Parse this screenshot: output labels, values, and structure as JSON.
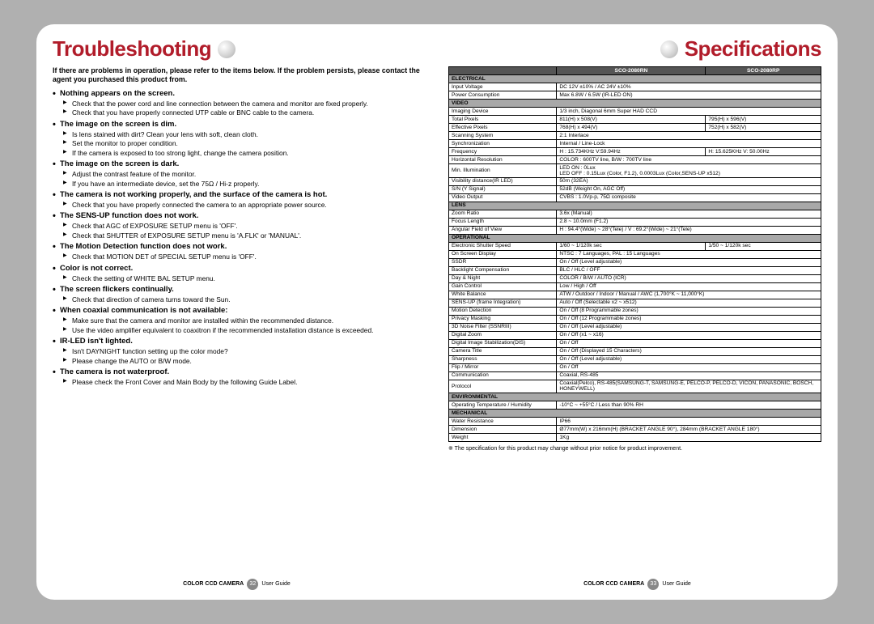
{
  "left": {
    "title": "Troubleshooting",
    "intro": "If there are problems in operation, please refer to the items below. If the problem persists, please contact the agent you purchased this product from.",
    "groups": [
      {
        "h": "Nothing appears on the screen.",
        "items": [
          "Check that the power cord and line connection between the camera and monitor are fixed properly.",
          "Check that you have properly connected UTP cable or BNC cable to the camera."
        ]
      },
      {
        "h": "The image on the screen is dim.",
        "items": [
          "Is lens stained with dirt? Clean your lens with soft, clean cloth.",
          "Set the monitor to proper condition.",
          "If the camera is exposed to too strong light, change the camera position."
        ]
      },
      {
        "h": "The image on the screen is dark.",
        "items": [
          "Adjust the contrast feature of the monitor.",
          "If you have an intermediate device, set the 75Ω / Hi-z properly."
        ]
      },
      {
        "h": "The camera is not working properly, and the surface of the camera is hot.",
        "items": [
          "Check that you have properly connected the camera to an appropriate power source."
        ]
      },
      {
        "h": "The SENS-UP function does not work.",
        "items": [
          "Check that AGC of EXPOSURE SETUP menu is 'OFF'.",
          "Check that SHUTTER of EXPOSURE SETUP menu is 'A.FLK' or 'MANUAL'."
        ]
      },
      {
        "h": "The Motion Detection function does not work.",
        "items": [
          "Check that MOTION DET of SPECIAL SETUP menu is 'OFF'."
        ]
      },
      {
        "h": "Color is not correct.",
        "items": [
          "Check the setting of WHITE BAL SETUP menu."
        ]
      },
      {
        "h": "The screen flickers continually.",
        "items": [
          "Check that direction of camera turns toward the Sun."
        ]
      },
      {
        "h": "When coaxial communication is not available:",
        "items": [
          "Make sure that the camera and monitor are installed within the recommended distance.",
          "Use the video amplifier equivalent to coaxitron if the recommended installation distance is exceeded."
        ]
      },
      {
        "h": "IR-LED isn't lighted.",
        "items": [
          "Isn't DAYNIGHT function setting up the color mode?",
          "Please change the AUTO or B/W mode."
        ]
      },
      {
        "h": "The camera is not waterproof.",
        "items": [
          "Please check the Front Cover and Main Body by the following Guide Label."
        ]
      }
    ],
    "footer": {
      "pre": "COLOR CCD CAMERA",
      "page": "32",
      "post": "User Guide"
    }
  },
  "right": {
    "title": "Specifications",
    "models": [
      "SCO-2080RN",
      "SCO-2080RP"
    ],
    "note": "※ The specification for this product may change without prior notice for product improvement.",
    "sections": [
      {
        "cat": "ELECTRICAL",
        "rows": [
          [
            "Input Voltage",
            "DC 12V ±10% / AC 24V ±10%",
            null
          ],
          [
            "Power Consumption",
            "Max 6.8W / 6.5W (IR-LED ON)",
            null
          ]
        ]
      },
      {
        "cat": "VIDEO",
        "rows": [
          [
            "Imaging Device",
            "1/3 inch, Diagonal 6mm Super HAD CCD",
            null
          ],
          [
            "Total Pixels",
            "811(H) x 508(V)",
            "795(H) x 596(V)"
          ],
          [
            "Effective Pixels",
            "768(H) x 494(V)",
            "752(H) x 582(V)"
          ],
          [
            "Scanning System",
            "2:1 Interlace",
            null
          ],
          [
            "Synchronization",
            "Internal / Line-Lock",
            null
          ],
          [
            "Frequency",
            "H : 15.734KHz V:59.94Hz",
            "H: 15.625KHz V: 50.00Hz"
          ],
          [
            "Horizontal Resolution",
            "COLOR : 600TV line, B/W : 700TV line",
            null
          ],
          [
            "Min. Illumination",
            "LED ON : 0Lux\nLED OFF : 0.15Lux (Color, F1.2), 0.0003Lux (Color,SENS-UP x512)",
            null
          ],
          [
            "Visibility distance(IR LED)",
            "50m (32EA)",
            null
          ],
          [
            "S/N (Y Signal)",
            "52dB (Weight On, AGC Off)",
            null
          ],
          [
            "Video Output",
            "CVBS : 1.0Vp-p, 75Ω composite",
            null
          ]
        ]
      },
      {
        "cat": "LENS",
        "rows": [
          [
            "Zoom Ratio",
            "3.6x (Manual)",
            null
          ],
          [
            "Focus Length",
            "2.8 ~ 10.0mm (F1.2)",
            null
          ],
          [
            "Angular Field of View",
            "H : 94.4°(Wide) ~ 28°(Tele) / V : 69.2°(Wide) ~ 21°(Tele)",
            null
          ]
        ]
      },
      {
        "cat": "OPERATIONAL",
        "rows": [
          [
            "Electronic Shutter Speed",
            "1/60 ~ 1/120k sec",
            "1/50 ~ 1/120k sec"
          ],
          [
            "On Screen Display",
            "NTSC : 7 Languages, PAL : 15 Languages",
            null
          ],
          [
            "SSDR",
            "On / Off (Level adjustable)",
            null
          ],
          [
            "Backlight Compensation",
            "BLC / HLC / OFF",
            null
          ],
          [
            "Day & Night",
            "COLOR / B/W / AUTO (ICR)",
            null
          ],
          [
            "Gain Control",
            "Low / High / Off",
            null
          ],
          [
            "White Balance",
            "ATW / Outdoor / Indoor / Manual / AWC (1,700°K ~ 11,000°K)",
            null
          ],
          [
            "SENS-UP (frame Integration)",
            "Auto / Off (Selectable x2 ~ x512)",
            null
          ],
          [
            "Motion Detection",
            "On / Off (8 Programmable zones)",
            null
          ],
          [
            "Privacy Masking",
            "On / Off (12 Programmable zones)",
            null
          ],
          [
            "3D Noise Filter (SSNRIII)",
            "On / Off (Level adjustable)",
            null
          ],
          [
            "Digital Zoom",
            "On / Off (x1 ~ x16)",
            null
          ],
          [
            "Digital Image Stabilization(DIS)",
            "On / Off",
            null
          ],
          [
            "Camera Title",
            "On / Off (Displayed 15 Characters)",
            null
          ],
          [
            "Sharpness",
            "On / Off (Level adjustable)",
            null
          ],
          [
            "Flip / Mirror",
            "On / Off",
            null
          ],
          [
            "Communication",
            "Coaxial, RS-485",
            null
          ],
          [
            "Protocol",
            "Coaxial(Pelco), RS-485(SAMSUNG-T, SAMSUNG-E, PELCO-P, PELCO-D, VICON, PANASONIC, BOSCH, HONEYWELL)",
            null
          ]
        ]
      },
      {
        "cat": "ENVIRONMENTAL",
        "rows": [
          [
            "Operating Temperature / Humidity",
            "-10°C ~ +55°C / Less than 90% RH",
            null
          ]
        ]
      },
      {
        "cat": "MECHANICAL",
        "rows": [
          [
            "Water Resistance",
            "IP66",
            null
          ],
          [
            "Dimension",
            "Ø77mm(W) x 216mm(H) (BRACKET ANGLE 90°), 284mm (BRACKET ANGLE 180°)",
            null
          ],
          [
            "Weight",
            "1Kg",
            null
          ]
        ]
      }
    ],
    "footer": {
      "pre": "COLOR CCD CAMERA",
      "page": "33",
      "post": "User Guide"
    }
  }
}
